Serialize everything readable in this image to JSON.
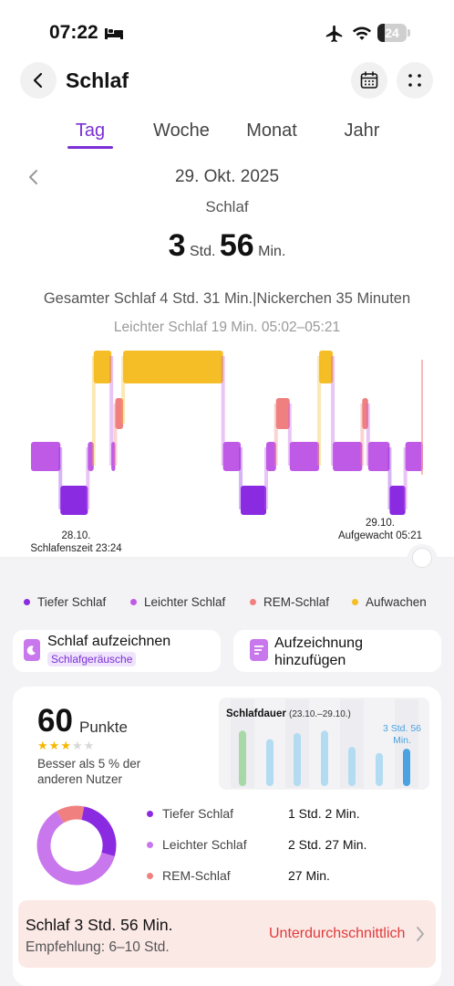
{
  "status_bar": {
    "time": "07:22",
    "battery": "24",
    "battery_level": 0.24
  },
  "header": {
    "title": "Schlaf"
  },
  "tabs": [
    {
      "label": "Tag",
      "active": true
    },
    {
      "label": "Woche",
      "active": false
    },
    {
      "label": "Monat",
      "active": false
    },
    {
      "label": "Jahr",
      "active": false
    }
  ],
  "date": "29. Okt. 2025",
  "sleep_label": "Schlaf",
  "duration": {
    "hours": "3",
    "hours_unit": "Std.",
    "minutes": "56",
    "minutes_unit": "Min."
  },
  "summary": "Gesamter Schlaf 4 Std. 31 Min.|Nickerchen 35 Minuten",
  "segment_info": "Leichter Schlaf 19 Min. 05:02–05:21",
  "chart_data": {
    "type": "hypnogram",
    "levels": [
      "Aufwachen",
      "REM-Schlaf",
      "Leichter Schlaf",
      "Tiefer Schlaf"
    ],
    "segments": [
      {
        "stage": "Leichter Schlaf",
        "start": 0.0,
        "end": 0.075
      },
      {
        "stage": "Tiefer Schlaf",
        "start": 0.075,
        "end": 0.145
      },
      {
        "stage": "Leichter Schlaf",
        "start": 0.145,
        "end": 0.16
      },
      {
        "stage": "Aufwachen",
        "start": 0.16,
        "end": 0.205
      },
      {
        "stage": "Leichter Schlaf",
        "start": 0.205,
        "end": 0.215
      },
      {
        "stage": "REM-Schlaf",
        "start": 0.215,
        "end": 0.235
      },
      {
        "stage": "Aufwachen",
        "start": 0.235,
        "end": 0.49
      },
      {
        "stage": "Leichter Schlaf",
        "start": 0.49,
        "end": 0.535
      },
      {
        "stage": "Tiefer Schlaf",
        "start": 0.535,
        "end": 0.6
      },
      {
        "stage": "Leichter Schlaf",
        "start": 0.6,
        "end": 0.625
      },
      {
        "stage": "REM-Schlaf",
        "start": 0.625,
        "end": 0.66
      },
      {
        "stage": "Leichter Schlaf",
        "start": 0.66,
        "end": 0.735
      },
      {
        "stage": "Aufwachen",
        "start": 0.735,
        "end": 0.77
      },
      {
        "stage": "Leichter Schlaf",
        "start": 0.77,
        "end": 0.845
      },
      {
        "stage": "REM-Schlaf",
        "start": 0.845,
        "end": 0.86
      },
      {
        "stage": "Leichter Schlaf",
        "start": 0.86,
        "end": 0.915
      },
      {
        "stage": "Tiefer Schlaf",
        "start": 0.915,
        "end": 0.955
      },
      {
        "stage": "Leichter Schlaf",
        "start": 0.955,
        "end": 1.0
      }
    ],
    "start_date": "28.10.",
    "start_label": "Schlafenszeit 23:24",
    "end_date": "29.10.",
    "end_label": "Aufgewacht 05:21"
  },
  "colors": {
    "deep": "#8a2be2",
    "light": "#bf5ae6",
    "rem": "#f08080",
    "awake": "#f5bd26",
    "accent": "#7b2fd6",
    "warning": "#e03a3a"
  },
  "legend": [
    {
      "label": "Tiefer Schlaf",
      "color": "#8a2be2"
    },
    {
      "label": "Leichter Schlaf",
      "color": "#bf5ae6"
    },
    {
      "label": "REM-Schlaf",
      "color": "#f08080"
    },
    {
      "label": "Aufwachen",
      "color": "#f5bd26"
    }
  ],
  "actions": {
    "record_title": "Schlaf aufzeichnen",
    "record_badge": "Schlafgeräusche",
    "add_title_line1": "Aufzeichnung",
    "add_title_line2": "hinzufügen"
  },
  "score": {
    "value": "60",
    "unit": "Punkte",
    "stars": 3,
    "stars_max": 5,
    "comparison": "Besser als 5 % der anderen Nutzer"
  },
  "duration_chart": {
    "title": "Schlafdauer",
    "range": "(23.10.–29.10.)",
    "latest_value": "3 Std. 56 Min.",
    "bars": [
      {
        "value": 0.92,
        "color": "#a8d8a8"
      },
      {
        "value": 0.78,
        "color": "#b3dcf2"
      },
      {
        "value": 0.88,
        "color": "#b3dcf2"
      },
      {
        "value": 0.92,
        "color": "#b3dcf2"
      },
      {
        "value": 0.65,
        "color": "#b3dcf2"
      },
      {
        "value": 0.55,
        "color": "#b3dcf2"
      },
      {
        "value": 0.62,
        "color": "#4aa3e0"
      }
    ]
  },
  "stages": [
    {
      "name": "Tiefer Schlaf",
      "value": "1 Std. 2 Min.",
      "color": "#8a2be2",
      "fraction": 0.263
    },
    {
      "name": "Leichter Schlaf",
      "value": "2 Std. 27 Min.",
      "color": "#c977ec",
      "fraction": 0.623
    },
    {
      "name": "REM-Schlaf",
      "value": "27 Min.",
      "color": "#f08080",
      "fraction": 0.114
    }
  ],
  "recommendation": {
    "title": "Schlaf 3 Std. 56 Min.",
    "subtitle": "Empfehlung: 6–10 Std.",
    "status": "Unterdurchschnittlich"
  }
}
